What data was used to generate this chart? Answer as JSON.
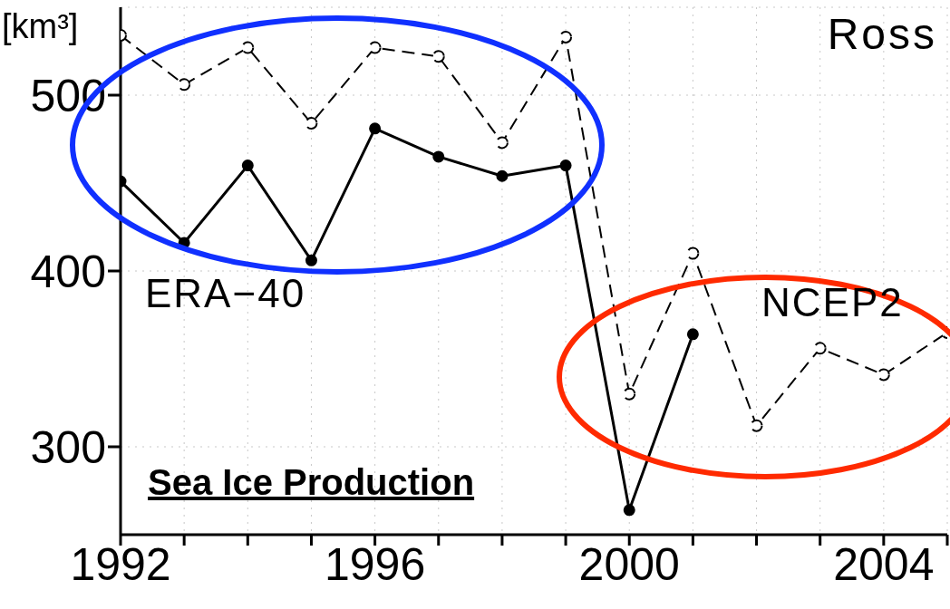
{
  "chart_data": {
    "type": "line",
    "title": "Ross",
    "ylabel": "[km³]",
    "annotations": [
      "ERA−40",
      "NCEP2",
      "Sea Ice Production"
    ],
    "x": [
      1992,
      1993,
      1994,
      1995,
      1996,
      1997,
      1998,
      1999,
      2000,
      2001,
      2002,
      2003,
      2004,
      2005
    ],
    "series": [
      {
        "color": "#000000",
        "line_style": "solid",
        "marker": "circle",
        "values": [
          451,
          416,
          460,
          406,
          481,
          465,
          454,
          460,
          264,
          364,
          null,
          null,
          null,
          null
        ]
      },
      {
        "color": "#000000",
        "line_style": "dashed",
        "marker": "circle",
        "values": [
          534,
          506,
          527,
          484,
          527,
          522,
          473,
          533,
          330,
          410,
          312,
          356,
          341,
          365
        ]
      }
    ],
    "xlim": [
      1992,
      2005
    ],
    "xticks": [
      1992,
      {
        "value": 1993,
        "label": null
      },
      {
        "value": 1994,
        "label": null
      },
      {
        "value": 1995,
        "label": null
      },
      1996,
      {
        "value": 1997,
        "label": null
      },
      {
        "value": 1998,
        "label": null
      },
      {
        "value": 1999,
        "label": null
      },
      2000,
      {
        "value": 2001,
        "label": null
      },
      {
        "value": 2002,
        "label": null
      },
      {
        "value": 2003,
        "label": null
      },
      2004,
      {
        "value": 2005,
        "label": null
      }
    ],
    "ylim": [
      250,
      550
    ],
    "yticks": [
      300,
      400,
      500
    ],
    "grid": true
  }
}
